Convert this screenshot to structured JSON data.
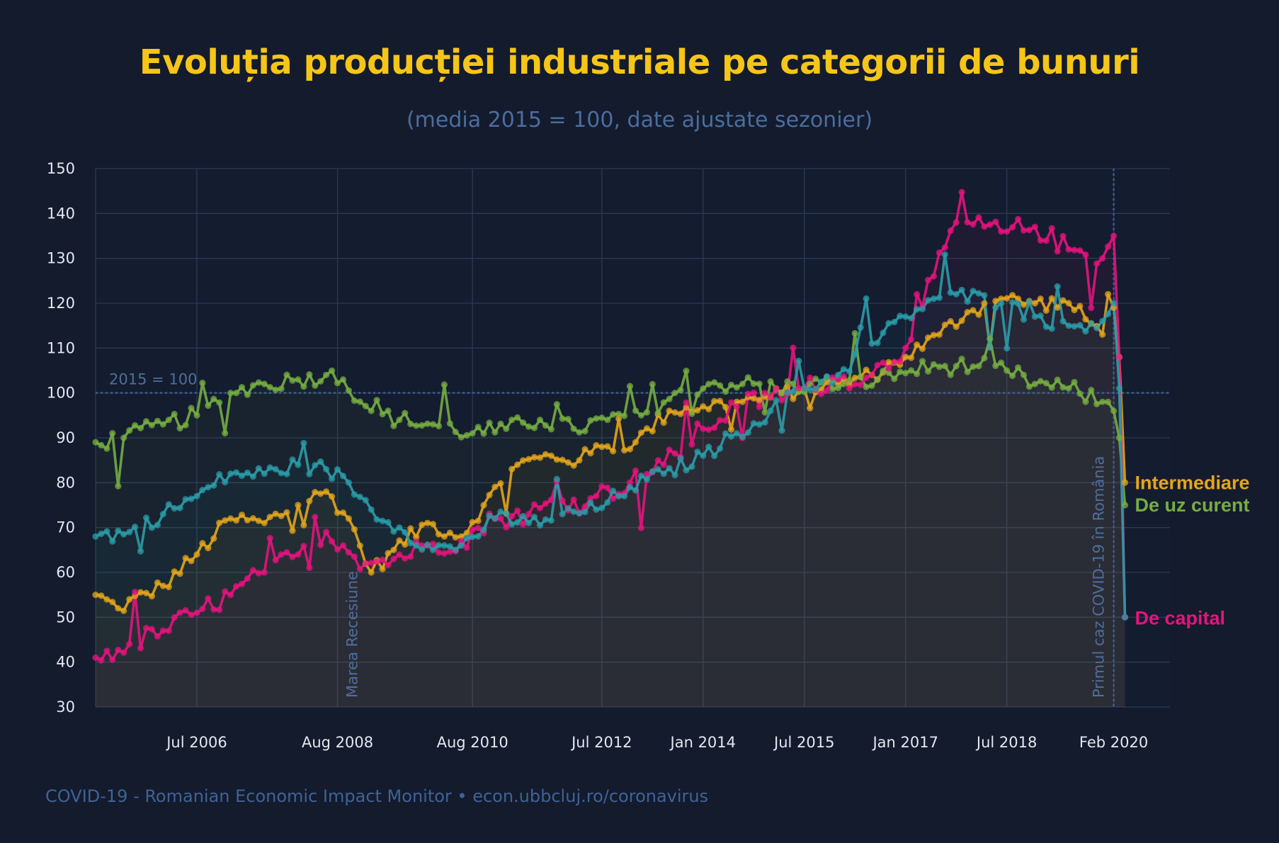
{
  "chart_data": {
    "type": "line",
    "title": "Evoluția producției industriale pe categorii de bunuri",
    "subtitle": "(media 2015 = 100, date ajustate sezonier)",
    "ylim": [
      30,
      150
    ],
    "yticks": [
      30,
      40,
      50,
      60,
      70,
      80,
      90,
      100,
      110,
      120,
      130,
      140,
      150
    ],
    "xlim": [
      "2005-01",
      "2020-12"
    ],
    "xticks": [
      {
        "label": "Jul 2006",
        "date": "2006-07"
      },
      {
        "label": "Aug 2008",
        "date": "2008-08"
      },
      {
        "label": "Aug 2010",
        "date": "2010-08"
      },
      {
        "label": "Jul 2012",
        "date": "2012-07"
      },
      {
        "label": "Jan 2014",
        "date": "2014-01"
      },
      {
        "label": "Jul 2015",
        "date": "2015-07"
      },
      {
        "label": "Jan 2017",
        "date": "2017-01"
      },
      {
        "label": "Jul 2018",
        "date": "2018-07"
      },
      {
        "label": "Feb 2020",
        "date": "2020-02"
      }
    ],
    "grid": true,
    "reference_line": {
      "y": 100,
      "label": "2015 = 100"
    },
    "annotations": [
      {
        "date": "2008-08",
        "label": "Marea Recesiune"
      },
      {
        "date": "2020-02",
        "label": "Primul caz COVID-19 în România"
      }
    ],
    "series_dates": [
      "2005-01",
      "2020-04"
    ],
    "series": [
      {
        "name": "Intermediare",
        "color": "#e3a51b",
        "anchors": [
          [
            "2005-01",
            55
          ],
          [
            "2005-05",
            52
          ],
          [
            "2006-01",
            57
          ],
          [
            "2006-07",
            64
          ],
          [
            "2007-01",
            72
          ],
          [
            "2007-07",
            71
          ],
          [
            "2008-01",
            75
          ],
          [
            "2008-06",
            78
          ],
          [
            "2008-10",
            72
          ],
          [
            "2009-02",
            60
          ],
          [
            "2009-06",
            65
          ],
          [
            "2009-12",
            71
          ],
          [
            "2010-06",
            68
          ],
          [
            "2010-10",
            75
          ],
          [
            "2011-04",
            84
          ],
          [
            "2011-10",
            86
          ],
          [
            "2012-03",
            85
          ],
          [
            "2012-07",
            88
          ],
          [
            "2013-01",
            89
          ],
          [
            "2013-07",
            96
          ],
          [
            "2014-01",
            97
          ],
          [
            "2014-07",
            98
          ],
          [
            "2015-01",
            99
          ],
          [
            "2015-07",
            101
          ],
          [
            "2016-01",
            102
          ],
          [
            "2016-07",
            104
          ],
          [
            "2017-01",
            108
          ],
          [
            "2017-07",
            113
          ],
          [
            "2017-12",
            118
          ],
          [
            "2018-06",
            121
          ],
          [
            "2018-12",
            120
          ],
          [
            "2019-06",
            120
          ],
          [
            "2019-12",
            113
          ],
          [
            "2020-01",
            122
          ],
          [
            "2020-02",
            119
          ],
          [
            "2020-03",
            108
          ],
          [
            "2020-04",
            80
          ]
        ]
      },
      {
        "name": "De uz curent",
        "color": "#75ad42",
        "anchors": [
          [
            "2005-01",
            89
          ],
          [
            "2005-06",
            90
          ],
          [
            "2006-01",
            93
          ],
          [
            "2006-07",
            95
          ],
          [
            "2007-01",
            100
          ],
          [
            "2007-07",
            102
          ],
          [
            "2008-01",
            103
          ],
          [
            "2008-06",
            104
          ],
          [
            "2008-09",
            103
          ],
          [
            "2009-02",
            96
          ],
          [
            "2009-07",
            94
          ],
          [
            "2010-01",
            93
          ],
          [
            "2010-08",
            91
          ],
          [
            "2011-02",
            92
          ],
          [
            "2011-08",
            94
          ],
          [
            "2012-02",
            92
          ],
          [
            "2012-08",
            94
          ],
          [
            "2013-02",
            95
          ],
          [
            "2013-08",
            100
          ],
          [
            "2014-02",
            102
          ],
          [
            "2014-08",
            102
          ],
          [
            "2015-02",
            101
          ],
          [
            "2015-08",
            102
          ],
          [
            "2016-02",
            102
          ],
          [
            "2016-08",
            103
          ],
          [
            "2017-02",
            105
          ],
          [
            "2017-08",
            106
          ],
          [
            "2018-02",
            106
          ],
          [
            "2018-07",
            105
          ],
          [
            "2018-12",
            102
          ],
          [
            "2019-06",
            101
          ],
          [
            "2019-12",
            98
          ],
          [
            "2020-02",
            96
          ],
          [
            "2020-03",
            90
          ],
          [
            "2020-04",
            75
          ]
        ]
      },
      {
        "name": "De capital",
        "color": "#e5137e",
        "anchors": [
          [
            "2005-01",
            41
          ],
          [
            "2005-07",
            44
          ],
          [
            "2006-01",
            47
          ],
          [
            "2006-07",
            51
          ],
          [
            "2007-01",
            55
          ],
          [
            "2007-07",
            60
          ],
          [
            "2008-01",
            64
          ],
          [
            "2008-06",
            69
          ],
          [
            "2008-09",
            66
          ],
          [
            "2009-01",
            62
          ],
          [
            "2009-06",
            63
          ],
          [
            "2009-12",
            66
          ],
          [
            "2010-06",
            67
          ],
          [
            "2010-12",
            72
          ],
          [
            "2011-06",
            73
          ],
          [
            "2011-12",
            76
          ],
          [
            "2012-06",
            77
          ],
          [
            "2012-12",
            80
          ],
          [
            "2013-06",
            84
          ],
          [
            "2014-01",
            92
          ],
          [
            "2014-07",
            97
          ],
          [
            "2015-01",
            99
          ],
          [
            "2015-07",
            101
          ],
          [
            "2016-01",
            103
          ],
          [
            "2016-07",
            104
          ],
          [
            "2017-01",
            110
          ],
          [
            "2017-06",
            126
          ],
          [
            "2017-10",
            138
          ],
          [
            "2018-06",
            136
          ],
          [
            "2018-12",
            137
          ],
          [
            "2019-06",
            132
          ],
          [
            "2019-12",
            130
          ],
          [
            "2020-02",
            135
          ],
          [
            "2020-03",
            108
          ],
          [
            "2020-04",
            50
          ]
        ]
      },
      {
        "name": "",
        "color": "#2a9ca8",
        "anchors": [
          [
            "2005-01",
            68
          ],
          [
            "2005-07",
            69
          ],
          [
            "2006-01",
            73
          ],
          [
            "2006-07",
            77
          ],
          [
            "2007-01",
            82
          ],
          [
            "2007-07",
            82
          ],
          [
            "2008-01",
            84
          ],
          [
            "2008-06",
            83
          ],
          [
            "2008-10",
            80
          ],
          [
            "2009-02",
            74
          ],
          [
            "2009-07",
            70
          ],
          [
            "2010-01",
            65
          ],
          [
            "2010-06",
            66
          ],
          [
            "2010-12",
            72
          ],
          [
            "2011-06",
            71
          ],
          [
            "2011-12",
            73
          ],
          [
            "2012-06",
            74
          ],
          [
            "2012-12",
            79
          ],
          [
            "2013-06",
            82
          ],
          [
            "2014-01",
            86
          ],
          [
            "2014-07",
            91
          ],
          [
            "2015-01",
            96
          ],
          [
            "2015-07",
            101
          ],
          [
            "2016-01",
            104
          ],
          [
            "2016-07",
            111
          ],
          [
            "2017-01",
            117
          ],
          [
            "2017-06",
            121
          ],
          [
            "2017-10",
            122
          ],
          [
            "2018-06",
            120
          ],
          [
            "2018-12",
            117
          ],
          [
            "2019-06",
            115
          ],
          [
            "2019-12",
            116
          ],
          [
            "2020-02",
            120
          ],
          [
            "2020-03",
            101
          ],
          [
            "2020-04",
            50
          ]
        ]
      }
    ]
  },
  "labels": {
    "end_intermediare": "Intermediare",
    "end_uz_curent": "De uz curent",
    "end_capital": "De capital"
  },
  "footer": "COVID-19 - Romanian Economic Impact Monitor • econ.ubbcluj.ro/coronavirus"
}
